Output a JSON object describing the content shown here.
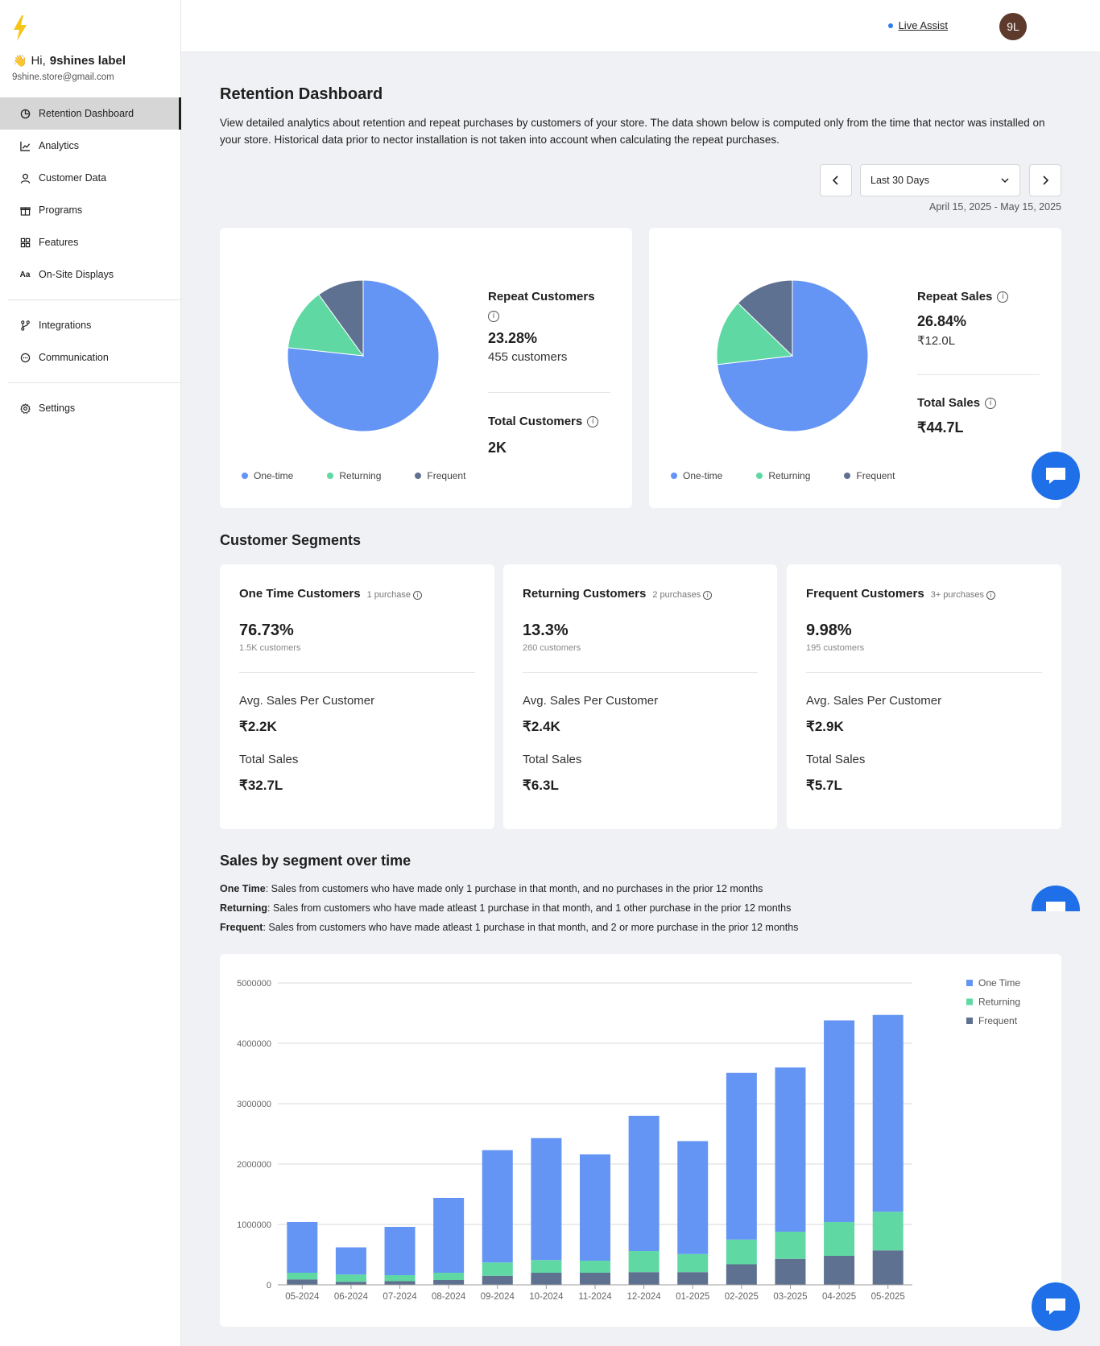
{
  "user": {
    "greeting": "Hi,",
    "name": "9shines label",
    "email": "9shine.store@gmail.com",
    "avatar_initials": "9L"
  },
  "nav": {
    "items": [
      {
        "label": "Retention Dashboard",
        "icon": "pie-chart-icon",
        "active": true
      },
      {
        "label": "Analytics",
        "icon": "line-chart-icon"
      },
      {
        "label": "Customer Data",
        "icon": "user-icon"
      },
      {
        "label": "Programs",
        "icon": "gift-icon"
      },
      {
        "label": "Features",
        "icon": "grid-icon"
      },
      {
        "label": "On-Site Displays",
        "icon": "text-aa-icon"
      },
      {
        "label": "Integrations",
        "icon": "branch-icon"
      },
      {
        "label": "Communication",
        "icon": "chat-bubble-icon"
      },
      {
        "label": "Settings",
        "icon": "gear-icon"
      }
    ]
  },
  "header": {
    "live_assist": "Live Assist"
  },
  "page": {
    "title": "Retention Dashboard",
    "description": "View detailed analytics about retention and repeat purchases by customers of your store. The data shown below is computed only from the time that nector was installed on your store. Historical data prior to nector installation is not taken into account when calculating the repeat purchases.",
    "period_select": "Last 30 Days",
    "date_range": "April 15, 2025 - May 15, 2025"
  },
  "colors": {
    "one_time": "#6495f5",
    "returning": "#5fd8a4",
    "frequent": "#5f7190",
    "accent": "#1e6fe8"
  },
  "legend": {
    "one_time": "One-time",
    "returning": "Returning",
    "frequent": "Frequent"
  },
  "customers_card": {
    "repeat_label": "Repeat Customers",
    "repeat_pct": "23.28%",
    "repeat_count": "455 customers",
    "total_label": "Total Customers",
    "total_value": "2K",
    "pie": [
      {
        "name": "One-time",
        "value": 76.73
      },
      {
        "name": "Returning",
        "value": 13.3
      },
      {
        "name": "Frequent",
        "value": 9.98
      }
    ]
  },
  "sales_card": {
    "repeat_label": "Repeat Sales",
    "repeat_pct": "26.84%",
    "repeat_value": "₹12.0L",
    "total_label": "Total Sales",
    "total_value": "₹44.7L",
    "pie": [
      {
        "name": "One-time",
        "value": 73.16
      },
      {
        "name": "Returning",
        "value": 14.09
      },
      {
        "name": "Frequent",
        "value": 12.75
      }
    ]
  },
  "segments": {
    "title": "Customer Segments",
    "cards": [
      {
        "title": "One Time Customers",
        "note": "1 purchase",
        "pct": "76.73%",
        "count": "1.5K customers",
        "avg_label": "Avg. Sales Per Customer",
        "avg": "₹2.2K",
        "total_label": "Total Sales",
        "total": "₹32.7L"
      },
      {
        "title": "Returning Customers",
        "note": "2 purchases",
        "pct": "13.3%",
        "count": "260 customers",
        "avg_label": "Avg. Sales Per Customer",
        "avg": "₹2.4K",
        "total_label": "Total Sales",
        "total": "₹6.3L"
      },
      {
        "title": "Frequent Customers",
        "note": "3+ purchases",
        "pct": "9.98%",
        "count": "195 customers",
        "avg_label": "Avg. Sales Per Customer",
        "avg": "₹2.9K",
        "total_label": "Total Sales",
        "total": "₹5.7L"
      }
    ]
  },
  "sales_over_time": {
    "title": "Sales by segment over time",
    "defs": [
      {
        "term": "One Time",
        "text": ": Sales from customers who have made only 1 purchase in that month, and no purchases in the prior 12 months"
      },
      {
        "term": "Returning",
        "text": ": Sales from customers who have made atleast 1 purchase in that month, and 1 other purchase in the prior 12 months"
      },
      {
        "term": "Frequent",
        "text": ": Sales from customers who have made atleast 1 purchase in that month, and 2 or more purchase in the prior 12 months"
      }
    ]
  },
  "chart_data": {
    "type": "bar",
    "stacked": true,
    "categories": [
      "05-2024",
      "06-2024",
      "07-2024",
      "08-2024",
      "09-2024",
      "10-2024",
      "11-2024",
      "12-2024",
      "01-2025",
      "02-2025",
      "03-2025",
      "04-2025",
      "05-2025"
    ],
    "series": [
      {
        "name": "Frequent",
        "color": "#5f7190",
        "values": [
          90000,
          50000,
          60000,
          80000,
          150000,
          200000,
          200000,
          210000,
          210000,
          340000,
          430000,
          480000,
          570000
        ]
      },
      {
        "name": "Returning",
        "color": "#5fd8a4",
        "values": [
          110000,
          120000,
          100000,
          120000,
          220000,
          210000,
          200000,
          350000,
          300000,
          410000,
          450000,
          560000,
          640000
        ]
      },
      {
        "name": "One Time",
        "color": "#6495f5",
        "values": [
          840000,
          450000,
          800000,
          1240000,
          1860000,
          2020000,
          1760000,
          2240000,
          1870000,
          2760000,
          2720000,
          3340000,
          3260000
        ]
      }
    ],
    "legend_order": [
      "One Time",
      "Returning",
      "Frequent"
    ],
    "yticks": [
      "5000000",
      "4000000",
      "3000000",
      "2000000",
      "1000000",
      "0"
    ],
    "ylim": [
      0,
      5000000
    ],
    "grid": true,
    "legend_position": "top-right"
  }
}
